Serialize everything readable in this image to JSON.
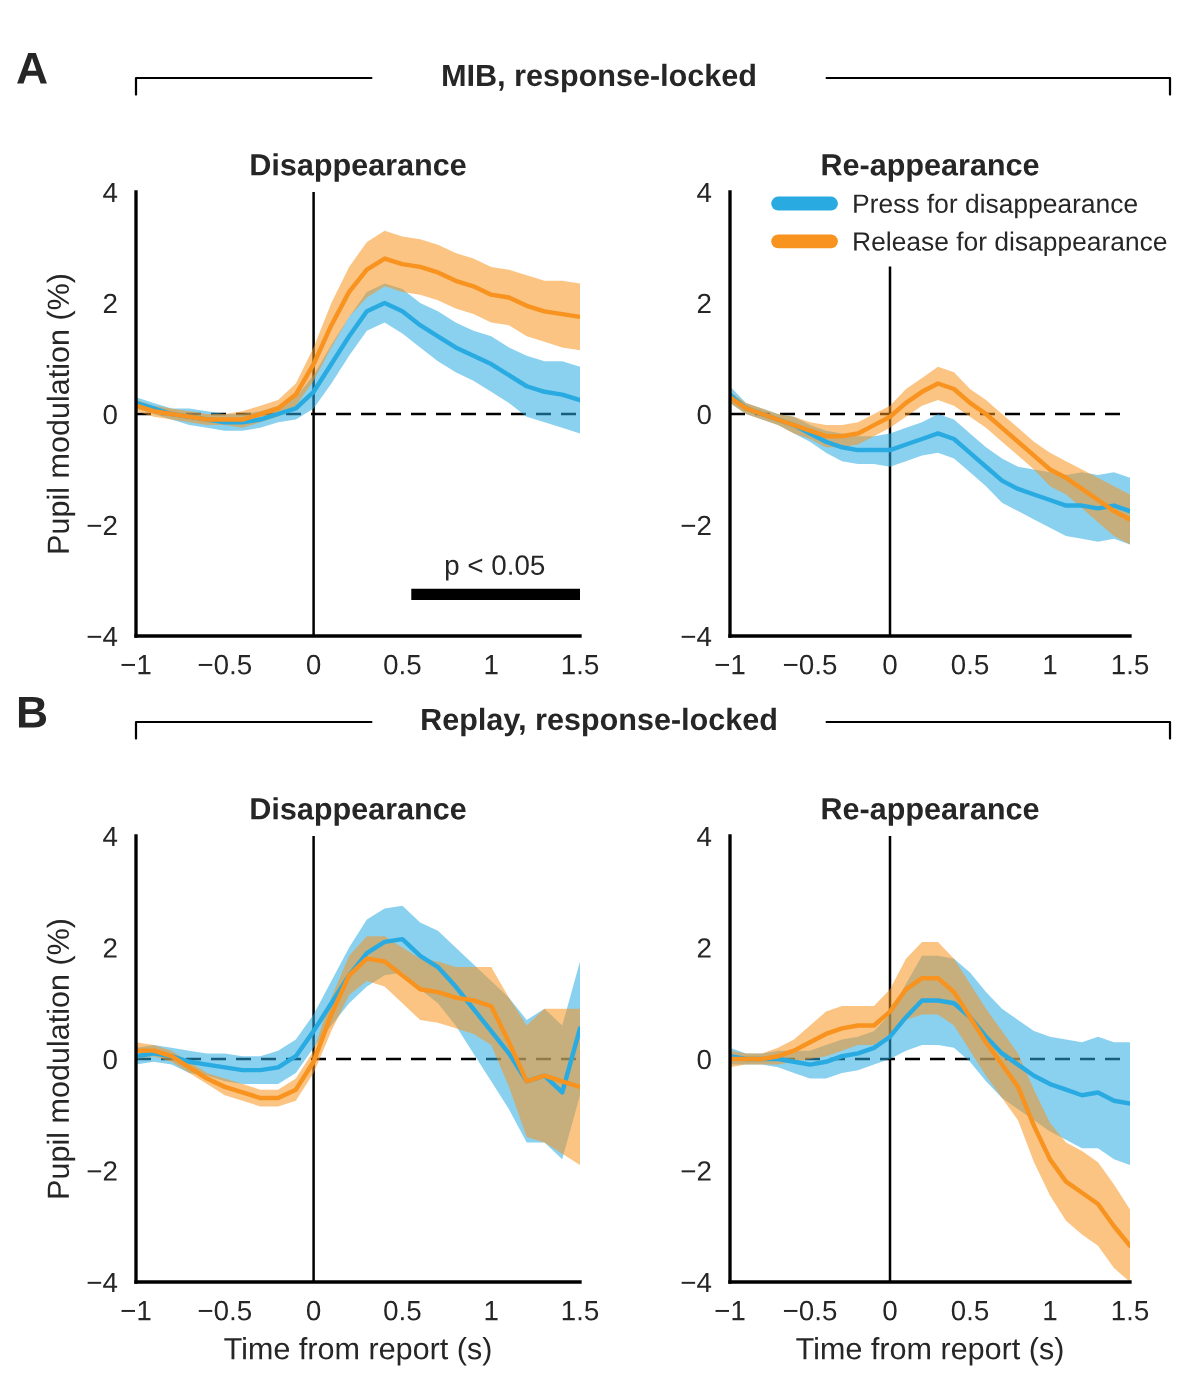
{
  "chart_data": [
    {
      "type": "line",
      "title": "Disappearance",
      "ylabel": "Pupil modulation (%)",
      "annotations": [
        "A",
        "MIB, response-locked",
        {
          "text": "p < 0.05",
          "x": 1.02,
          "y": -3.0
        }
      ],
      "x": [
        -1,
        -0.9,
        -0.8,
        -0.7,
        -0.6,
        -0.5,
        -0.4,
        -0.3,
        -0.2,
        -0.1,
        0,
        0.1,
        0.2,
        0.3,
        0.4,
        0.5,
        0.6,
        0.7,
        0.8,
        0.9,
        1,
        1.1,
        1.2,
        1.3,
        1.4,
        1.5
      ],
      "xlim": [
        -1,
        1.5
      ],
      "xticks": [
        -1,
        -0.5,
        0,
        0.5,
        1,
        1.5
      ],
      "ylim": [
        -4,
        4
      ],
      "yticks": [
        -4,
        -2,
        0,
        2,
        4
      ],
      "grid": false,
      "legend": false,
      "ref_lines": [
        {
          "axis": "x",
          "value": 0,
          "color": "#000000",
          "line_style": "solid"
        },
        {
          "axis": "y",
          "value": 0,
          "color": "#000000",
          "line_style": "dashed"
        }
      ],
      "series": [
        {
          "color": "#29abe2",
          "values": [
            0.2,
            0.1,
            0.0,
            -0.05,
            -0.1,
            -0.15,
            -0.15,
            -0.1,
            0.0,
            0.1,
            0.4,
            0.9,
            1.4,
            1.85,
            2.0,
            1.85,
            1.6,
            1.4,
            1.2,
            1.05,
            0.9,
            0.7,
            0.5,
            0.4,
            0.35,
            0.25
          ],
          "lower": [
            0.1,
            0.0,
            -0.1,
            -0.2,
            -0.25,
            -0.3,
            -0.3,
            -0.25,
            -0.15,
            -0.1,
            0.1,
            0.55,
            1.05,
            1.5,
            1.65,
            1.45,
            1.2,
            0.95,
            0.75,
            0.6,
            0.4,
            0.2,
            -0.05,
            -0.15,
            -0.25,
            -0.35
          ],
          "upper": [
            0.3,
            0.2,
            0.1,
            0.1,
            0.05,
            0.0,
            0.0,
            0.05,
            0.15,
            0.3,
            0.7,
            1.25,
            1.75,
            2.2,
            2.35,
            2.25,
            2.0,
            1.85,
            1.65,
            1.5,
            1.4,
            1.2,
            1.05,
            0.95,
            0.95,
            0.85
          ]
        },
        {
          "color": "#f7931e",
          "values": [
            0.15,
            0.05,
            0.0,
            -0.05,
            -0.1,
            -0.1,
            -0.1,
            0.0,
            0.1,
            0.35,
            0.9,
            1.6,
            2.2,
            2.6,
            2.8,
            2.7,
            2.65,
            2.55,
            2.4,
            2.3,
            2.15,
            2.1,
            1.95,
            1.85,
            1.8,
            1.75
          ],
          "lower": [
            0.05,
            -0.05,
            -0.1,
            -0.15,
            -0.2,
            -0.2,
            -0.25,
            -0.15,
            -0.05,
            0.15,
            0.6,
            1.2,
            1.75,
            2.1,
            2.3,
            2.2,
            2.15,
            2.05,
            1.9,
            1.8,
            1.65,
            1.6,
            1.4,
            1.3,
            1.2,
            1.15
          ],
          "upper": [
            0.25,
            0.15,
            0.1,
            0.05,
            0.0,
            0.0,
            0.05,
            0.15,
            0.25,
            0.55,
            1.2,
            2.0,
            2.65,
            3.1,
            3.3,
            3.2,
            3.15,
            3.05,
            2.9,
            2.8,
            2.65,
            2.6,
            2.5,
            2.4,
            2.4,
            2.35
          ]
        },
        {
          "color": "#000000",
          "x": [
            0.55,
            1.5
          ],
          "values": [
            -3.25,
            -3.25
          ]
        }
      ]
    },
    {
      "type": "line",
      "title": "Re-appearance",
      "x": [
        -1,
        -0.9,
        -0.8,
        -0.7,
        -0.6,
        -0.5,
        -0.4,
        -0.3,
        -0.2,
        -0.1,
        0,
        0.1,
        0.2,
        0.3,
        0.4,
        0.5,
        0.6,
        0.7,
        0.8,
        0.9,
        1,
        1.1,
        1.2,
        1.3,
        1.4,
        1.5
      ],
      "xlim": [
        -1,
        1.5
      ],
      "xticks": [
        -1,
        -0.5,
        0,
        0.5,
        1,
        1.5
      ],
      "ylim": [
        -4,
        4
      ],
      "yticks": [
        -4,
        -2,
        0,
        2,
        4
      ],
      "grid": false,
      "legend": "top right",
      "ref_lines": [
        {
          "axis": "x",
          "value": 0,
          "color": "#000000",
          "line_style": "solid"
        },
        {
          "axis": "y",
          "value": 0,
          "color": "#000000",
          "line_style": "dashed"
        }
      ],
      "series": [
        {
          "name": "Press for disappearance",
          "color": "#29abe2",
          "values": [
            0.35,
            0.1,
            0.0,
            -0.1,
            -0.2,
            -0.35,
            -0.5,
            -0.6,
            -0.65,
            -0.65,
            -0.65,
            -0.55,
            -0.45,
            -0.35,
            -0.45,
            -0.7,
            -0.95,
            -1.2,
            -1.35,
            -1.45,
            -1.55,
            -1.65,
            -1.65,
            -1.7,
            -1.65,
            -1.75
          ],
          "lower": [
            0.2,
            0.0,
            -0.1,
            -0.2,
            -0.35,
            -0.5,
            -0.7,
            -0.85,
            -0.9,
            -0.9,
            -0.95,
            -0.85,
            -0.75,
            -0.7,
            -0.8,
            -1.05,
            -1.3,
            -1.6,
            -1.75,
            -1.9,
            -2.05,
            -2.2,
            -2.25,
            -2.3,
            -2.25,
            -2.35
          ],
          "upper": [
            0.5,
            0.2,
            0.1,
            0.0,
            -0.05,
            -0.2,
            -0.3,
            -0.35,
            -0.4,
            -0.4,
            -0.35,
            -0.25,
            -0.15,
            0.0,
            -0.1,
            -0.35,
            -0.6,
            -0.8,
            -0.95,
            -1.0,
            -1.05,
            -1.1,
            -1.05,
            -1.1,
            -1.05,
            -1.15
          ]
        },
        {
          "name": "Release for disappearance",
          "color": "#f7931e",
          "values": [
            0.3,
            0.1,
            0.0,
            -0.1,
            -0.2,
            -0.3,
            -0.4,
            -0.4,
            -0.35,
            -0.2,
            -0.05,
            0.2,
            0.4,
            0.55,
            0.45,
            0.2,
            0.0,
            -0.25,
            -0.5,
            -0.75,
            -1.0,
            -1.15,
            -1.35,
            -1.55,
            -1.75,
            -1.9
          ],
          "lower": [
            0.2,
            0.0,
            -0.1,
            -0.2,
            -0.35,
            -0.45,
            -0.6,
            -0.6,
            -0.55,
            -0.4,
            -0.25,
            -0.05,
            0.15,
            0.25,
            0.15,
            -0.05,
            -0.25,
            -0.5,
            -0.75,
            -1.0,
            -1.3,
            -1.45,
            -1.7,
            -1.95,
            -2.2,
            -2.35
          ],
          "upper": [
            0.4,
            0.2,
            0.1,
            0.0,
            -0.05,
            -0.15,
            -0.2,
            -0.2,
            -0.15,
            0.0,
            0.15,
            0.45,
            0.65,
            0.85,
            0.75,
            0.45,
            0.25,
            0.0,
            -0.25,
            -0.5,
            -0.7,
            -0.85,
            -1.0,
            -1.15,
            -1.3,
            -1.45
          ]
        }
      ]
    },
    {
      "type": "line",
      "title": "Disappearance",
      "ylabel": "Pupil modulation (%)",
      "xlabel": "Time from report (s)",
      "annotations": [
        "B",
        "Replay, response-locked"
      ],
      "x": [
        -1,
        -0.9,
        -0.8,
        -0.7,
        -0.6,
        -0.5,
        -0.4,
        -0.3,
        -0.2,
        -0.1,
        0,
        0.1,
        0.2,
        0.3,
        0.4,
        0.5,
        0.6,
        0.7,
        0.8,
        0.9,
        1,
        1.1,
        1.2,
        1.3,
        1.4,
        1.5
      ],
      "xlim": [
        -1,
        1.5
      ],
      "xticks": [
        -1,
        -0.5,
        0,
        0.5,
        1,
        1.5
      ],
      "ylim": [
        -4,
        4
      ],
      "yticks": [
        -4,
        -2,
        0,
        2,
        4
      ],
      "grid": false,
      "legend": false,
      "ref_lines": [
        {
          "axis": "x",
          "value": 0,
          "color": "#000000",
          "line_style": "solid"
        },
        {
          "axis": "y",
          "value": 0,
          "color": "#000000",
          "line_style": "dashed"
        }
      ],
      "series": [
        {
          "color": "#29abe2",
          "values": [
            0.05,
            0.1,
            0.05,
            -0.05,
            -0.1,
            -0.15,
            -0.2,
            -0.2,
            -0.15,
            0.05,
            0.5,
            1.0,
            1.5,
            1.9,
            2.1,
            2.15,
            1.85,
            1.65,
            1.3,
            0.9,
            0.5,
            0.1,
            -0.4,
            -0.3,
            -0.6,
            0.55
          ],
          "lower": [
            -0.1,
            -0.05,
            -0.1,
            -0.25,
            -0.3,
            -0.4,
            -0.45,
            -0.45,
            -0.45,
            -0.25,
            0.2,
            0.6,
            1.0,
            1.3,
            1.5,
            1.55,
            1.25,
            1.0,
            0.6,
            0.1,
            -0.4,
            -0.9,
            -1.5,
            -1.5,
            -1.8,
            -0.65
          ],
          "upper": [
            0.2,
            0.25,
            0.2,
            0.15,
            0.1,
            0.1,
            0.05,
            0.05,
            0.15,
            0.35,
            0.8,
            1.4,
            2.0,
            2.5,
            2.7,
            2.75,
            2.45,
            2.3,
            2.0,
            1.7,
            1.4,
            1.1,
            0.7,
            0.9,
            0.6,
            1.75
          ]
        },
        {
          "color": "#f7931e",
          "values": [
            0.15,
            0.15,
            0.05,
            -0.15,
            -0.35,
            -0.5,
            -0.6,
            -0.7,
            -0.7,
            -0.55,
            -0.05,
            0.8,
            1.5,
            1.8,
            1.75,
            1.5,
            1.25,
            1.2,
            1.1,
            1.05,
            0.95,
            0.3,
            -0.4,
            -0.3,
            -0.4,
            -0.5
          ],
          "lower": [
            0.0,
            0.05,
            -0.05,
            -0.25,
            -0.45,
            -0.65,
            -0.75,
            -0.85,
            -0.85,
            -0.75,
            -0.25,
            0.5,
            1.15,
            1.4,
            1.3,
            1.0,
            0.7,
            0.65,
            0.55,
            0.45,
            0.25,
            -0.5,
            -1.4,
            -1.5,
            -1.7,
            -1.9
          ],
          "upper": [
            0.3,
            0.25,
            0.15,
            -0.05,
            -0.25,
            -0.35,
            -0.45,
            -0.55,
            -0.55,
            -0.35,
            0.15,
            1.1,
            1.85,
            2.2,
            2.2,
            2.0,
            1.8,
            1.75,
            1.65,
            1.65,
            1.65,
            1.1,
            0.6,
            0.9,
            0.9,
            0.9
          ]
        }
      ]
    },
    {
      "type": "line",
      "title": "Re-appearance",
      "xlabel": "Time from report (s)",
      "x": [
        -1,
        -0.9,
        -0.8,
        -0.7,
        -0.6,
        -0.5,
        -0.4,
        -0.3,
        -0.2,
        -0.1,
        0,
        0.1,
        0.2,
        0.3,
        0.4,
        0.5,
        0.6,
        0.7,
        0.8,
        0.9,
        1,
        1.1,
        1.2,
        1.3,
        1.4,
        1.5
      ],
      "xlim": [
        -1,
        1.5
      ],
      "xticks": [
        -1,
        -0.5,
        0,
        0.5,
        1,
        1.5
      ],
      "ylim": [
        -4,
        4
      ],
      "yticks": [
        -4,
        -2,
        0,
        2,
        4
      ],
      "grid": false,
      "legend": false,
      "ref_lines": [
        {
          "axis": "x",
          "value": 0,
          "color": "#000000",
          "line_style": "solid"
        },
        {
          "axis": "y",
          "value": 0,
          "color": "#000000",
          "line_style": "dashed"
        }
      ],
      "series": [
        {
          "color": "#29abe2",
          "values": [
            0.05,
            0.0,
            0.0,
            0.0,
            -0.05,
            -0.1,
            -0.05,
            0.05,
            0.1,
            0.2,
            0.4,
            0.75,
            1.05,
            1.05,
            1.0,
            0.75,
            0.4,
            0.1,
            -0.1,
            -0.3,
            -0.45,
            -0.55,
            -0.65,
            -0.6,
            -0.75,
            -0.8
          ],
          "lower": [
            -0.1,
            -0.1,
            -0.1,
            -0.15,
            -0.25,
            -0.35,
            -0.35,
            -0.25,
            -0.2,
            -0.1,
            0.0,
            0.15,
            0.25,
            0.25,
            0.2,
            -0.05,
            -0.4,
            -0.7,
            -0.9,
            -1.1,
            -1.3,
            -1.45,
            -1.6,
            -1.6,
            -1.8,
            -1.9
          ],
          "upper": [
            0.2,
            0.1,
            0.1,
            0.15,
            0.15,
            0.15,
            0.25,
            0.35,
            0.4,
            0.5,
            0.8,
            1.35,
            1.85,
            1.85,
            1.8,
            1.55,
            1.2,
            0.9,
            0.7,
            0.5,
            0.4,
            0.35,
            0.3,
            0.4,
            0.3,
            0.3
          ]
        },
        {
          "color": "#f7931e",
          "values": [
            0.0,
            0.0,
            0.0,
            0.05,
            0.15,
            0.3,
            0.45,
            0.55,
            0.6,
            0.6,
            0.85,
            1.25,
            1.45,
            1.45,
            1.2,
            0.75,
            0.3,
            -0.1,
            -0.5,
            -1.2,
            -1.8,
            -2.2,
            -2.4,
            -2.6,
            -3.0,
            -3.35
          ],
          "lower": [
            -0.15,
            -0.1,
            -0.1,
            -0.1,
            -0.05,
            0.0,
            0.05,
            0.15,
            0.25,
            0.25,
            0.45,
            0.7,
            0.8,
            0.8,
            0.6,
            0.15,
            -0.3,
            -0.7,
            -1.1,
            -1.85,
            -2.45,
            -2.9,
            -3.15,
            -3.35,
            -3.75,
            -4.0
          ],
          "upper": [
            0.15,
            0.1,
            0.1,
            0.2,
            0.35,
            0.6,
            0.85,
            0.95,
            0.95,
            0.95,
            1.25,
            1.8,
            2.1,
            2.1,
            1.8,
            1.35,
            0.9,
            0.5,
            0.1,
            -0.55,
            -1.15,
            -1.5,
            -1.65,
            -1.85,
            -2.25,
            -2.7
          ]
        }
      ]
    }
  ]
}
